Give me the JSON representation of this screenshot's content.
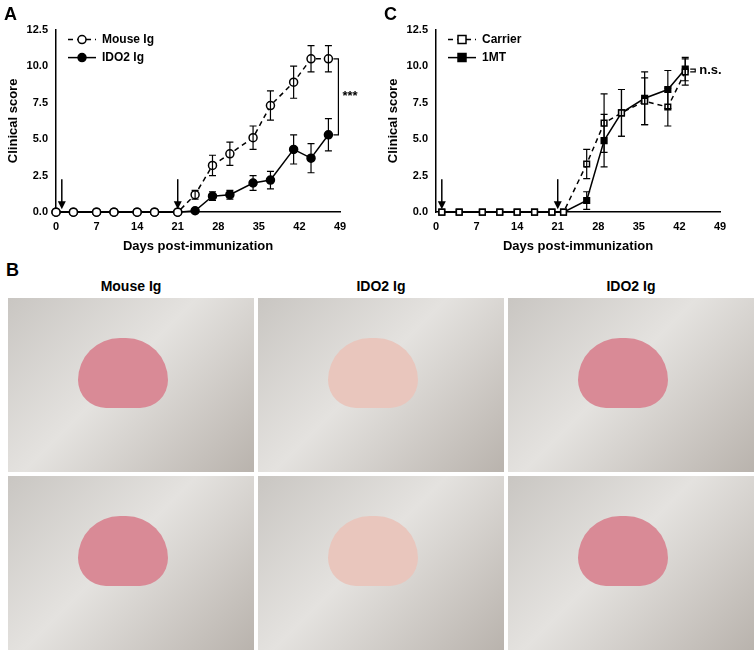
{
  "chart_data": [
    {
      "type": "line",
      "title": "A",
      "xlabel": "Days post-immunization",
      "ylabel": "Clinical score",
      "xlim": [
        0,
        49
      ],
      "xticks": [
        0,
        7,
        14,
        21,
        28,
        35,
        42,
        49
      ],
      "ylim": [
        0,
        12.5
      ],
      "yticks": [
        {
          "value": 0,
          "label": "0.0"
        },
        2.5,
        {
          "value": 5,
          "label": "5.0"
        },
        7.5,
        {
          "value": 10,
          "label": "10.0"
        },
        12.5
      ],
      "grid": false,
      "legend": "upper left",
      "arrows": [
        1,
        21
      ],
      "annotations": [
        {
          "text": "***"
        }
      ],
      "x": [
        0,
        3,
        7,
        10,
        14,
        17,
        21,
        24,
        27,
        30,
        34,
        37,
        41,
        44,
        47
      ],
      "series": [
        {
          "name": "Mouse Ig",
          "color": "#000000",
          "marker": "open_circle",
          "line_style": "dashed",
          "values": [
            0,
            0,
            0,
            0,
            0,
            0,
            0,
            1.2,
            3.2,
            4.0,
            5.1,
            7.3,
            8.9,
            10.5,
            10.5
          ],
          "errors": [
            0,
            0,
            0,
            0,
            0,
            0,
            0,
            0.3,
            0.7,
            0.8,
            0.8,
            1.0,
            1.1,
            0.9,
            0.9
          ]
        },
        {
          "name": "IDO2 Ig",
          "color": "#000000",
          "marker": "circle",
          "line_style": "solid",
          "values": [
            0,
            0,
            0,
            0,
            0,
            0,
            0,
            0.1,
            1.1,
            1.2,
            2.0,
            2.2,
            4.3,
            3.7,
            5.3
          ],
          "errors": [
            0,
            0,
            0,
            0,
            0,
            0,
            0,
            0.1,
            0.3,
            0.3,
            0.5,
            0.6,
            1.0,
            1.0,
            1.1
          ]
        }
      ]
    },
    {
      "type": "line",
      "title": "C",
      "xlabel": "Days post-immunization",
      "ylabel": "Clinical score",
      "xlim": [
        0,
        49
      ],
      "xticks": [
        0,
        7,
        14,
        21,
        28,
        35,
        42,
        49
      ],
      "ylim": [
        0,
        12.5
      ],
      "yticks": [
        {
          "value": 0,
          "label": "0.0"
        },
        2.5,
        {
          "value": 5,
          "label": "5.0"
        },
        7.5,
        {
          "value": 10,
          "label": "10.0"
        },
        12.5
      ],
      "grid": false,
      "legend": "upper left",
      "arrows": [
        1,
        21
      ],
      "annotations": [
        {
          "text": "n.s."
        }
      ],
      "x": [
        1,
        4,
        8,
        11,
        14,
        17,
        20,
        22,
        26,
        29,
        32,
        36,
        40,
        43
      ],
      "series": [
        {
          "name": "Carrier",
          "color": "#000000",
          "marker": "open_square",
          "line_style": "dashed",
          "values": [
            0,
            0,
            0,
            0,
            0,
            0,
            0,
            0,
            3.3,
            6.1,
            6.8,
            7.6,
            7.2,
            9.6
          ],
          "errors": [
            0,
            0,
            0,
            0,
            0,
            0,
            0,
            0,
            1.0,
            2.0,
            1.6,
            1.6,
            1.3,
            0.9
          ]
        },
        {
          "name": "1MT",
          "color": "#000000",
          "marker": "square",
          "line_style": "solid",
          "values": [
            0,
            0,
            0,
            0,
            0,
            0,
            0,
            0,
            0.8,
            4.9,
            6.8,
            7.8,
            8.4,
            9.8
          ],
          "errors": [
            0,
            0,
            0,
            0,
            0,
            0,
            0,
            0,
            0.6,
            1.8,
            1.6,
            1.8,
            1.3,
            0.8
          ]
        }
      ]
    }
  ],
  "photos": {
    "label": "B",
    "columns": [
      "Mouse Ig",
      "IDO2 Ig",
      "IDO2 Ig"
    ]
  }
}
